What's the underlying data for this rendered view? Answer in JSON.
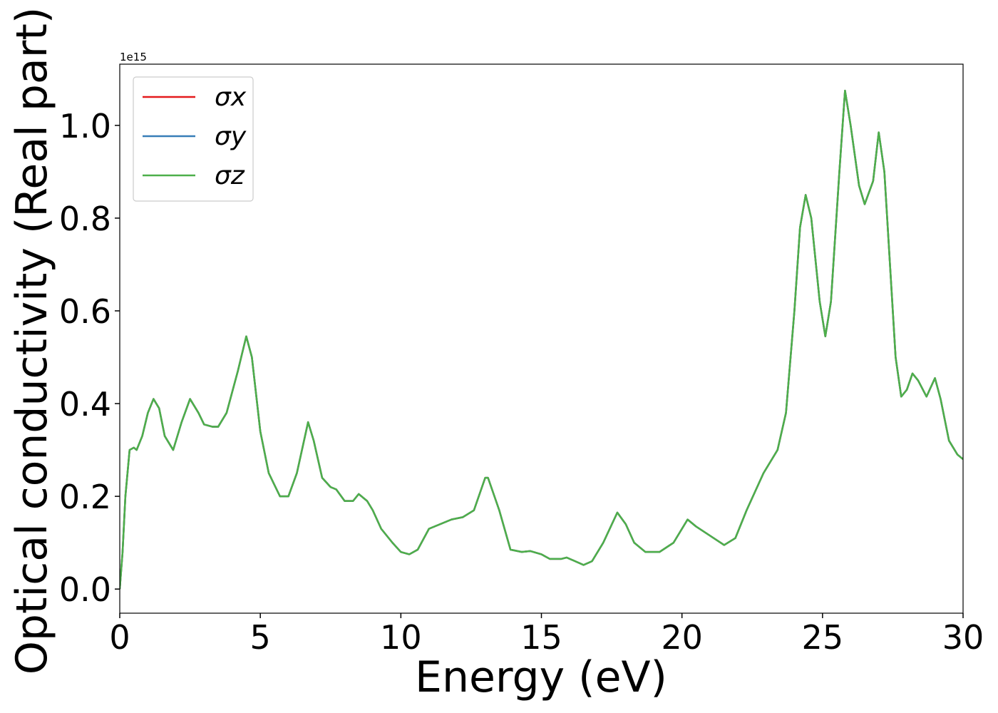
{
  "chart_data": {
    "type": "line",
    "xlabel": "Energy (eV)",
    "ylabel": "Optical conductivity (Real part)",
    "y_offset_label": "1e15",
    "xlim": [
      0,
      30
    ],
    "ylim": [
      -0.052,
      1.132
    ],
    "xticks": [
      0,
      5,
      10,
      15,
      20,
      25,
      30
    ],
    "yticks": [
      {
        "value": 0,
        "label": "0.0"
      },
      0.2,
      0.4,
      0.6,
      0.8,
      {
        "value": 1,
        "label": "1.0"
      }
    ],
    "legend": "upper left",
    "x": [
      0,
      0.1,
      0.2,
      0.35,
      0.5,
      0.6,
      0.8,
      1.0,
      1.2,
      1.4,
      1.6,
      1.9,
      2.2,
      2.5,
      2.8,
      3.0,
      3.3,
      3.5,
      3.8,
      4.2,
      4.5,
      4.7,
      5.0,
      5.3,
      5.7,
      6.0,
      6.3,
      6.7,
      6.9,
      7.2,
      7.5,
      7.7,
      8.0,
      8.3,
      8.5,
      8.8,
      9.0,
      9.3,
      9.7,
      10.0,
      10.3,
      10.6,
      11.0,
      11.4,
      11.8,
      12.2,
      12.6,
      13.0,
      13.1,
      13.5,
      13.9,
      14.3,
      14.6,
      15.0,
      15.3,
      15.7,
      15.9,
      16.2,
      16.5,
      16.8,
      17.2,
      17.7,
      18.0,
      18.3,
      18.7,
      19.2,
      19.7,
      20.2,
      20.5,
      21.0,
      21.5,
      21.9,
      22.3,
      22.9,
      23.4,
      23.7,
      24.0,
      24.2,
      24.4,
      24.6,
      24.9,
      25.1,
      25.3,
      25.6,
      25.8,
      26.0,
      26.3,
      26.5,
      26.8,
      27.0,
      27.2,
      27.4,
      27.6,
      27.8,
      28.0,
      28.2,
      28.4,
      28.7,
      29.0,
      29.2,
      29.5,
      29.8,
      30.0
    ],
    "series": [
      {
        "name": "σx",
        "color": "#e41a1c",
        "values": [
          0,
          0.08,
          0.2,
          0.3,
          0.305,
          0.3,
          0.33,
          0.38,
          0.41,
          0.39,
          0.33,
          0.3,
          0.36,
          0.41,
          0.38,
          0.355,
          0.35,
          0.35,
          0.38,
          0.47,
          0.545,
          0.5,
          0.34,
          0.25,
          0.2,
          0.2,
          0.25,
          0.36,
          0.32,
          0.24,
          0.22,
          0.215,
          0.19,
          0.19,
          0.205,
          0.19,
          0.17,
          0.13,
          0.1,
          0.08,
          0.075,
          0.085,
          0.13,
          0.14,
          0.15,
          0.155,
          0.17,
          0.24,
          0.24,
          0.17,
          0.085,
          0.08,
          0.082,
          0.075,
          0.065,
          0.065,
          0.068,
          0.06,
          0.052,
          0.06,
          0.1,
          0.165,
          0.14,
          0.1,
          0.08,
          0.08,
          0.1,
          0.15,
          0.135,
          0.115,
          0.095,
          0.11,
          0.17,
          0.25,
          0.3,
          0.38,
          0.6,
          0.78,
          0.85,
          0.8,
          0.62,
          0.545,
          0.62,
          0.9,
          1.075,
          1.0,
          0.87,
          0.83,
          0.88,
          0.985,
          0.9,
          0.7,
          0.5,
          0.415,
          0.43,
          0.465,
          0.45,
          0.415,
          0.455,
          0.41,
          0.32,
          0.29,
          0.28
        ]
      },
      {
        "name": "σy",
        "color": "#377eb8",
        "values": [
          0,
          0.08,
          0.2,
          0.3,
          0.305,
          0.3,
          0.33,
          0.38,
          0.41,
          0.39,
          0.33,
          0.3,
          0.36,
          0.41,
          0.38,
          0.355,
          0.35,
          0.35,
          0.38,
          0.47,
          0.545,
          0.5,
          0.34,
          0.25,
          0.2,
          0.2,
          0.25,
          0.36,
          0.32,
          0.24,
          0.22,
          0.215,
          0.19,
          0.19,
          0.205,
          0.19,
          0.17,
          0.13,
          0.1,
          0.08,
          0.075,
          0.085,
          0.13,
          0.14,
          0.15,
          0.155,
          0.17,
          0.24,
          0.24,
          0.17,
          0.085,
          0.08,
          0.082,
          0.075,
          0.065,
          0.065,
          0.068,
          0.06,
          0.052,
          0.06,
          0.1,
          0.165,
          0.14,
          0.1,
          0.08,
          0.08,
          0.1,
          0.15,
          0.135,
          0.115,
          0.095,
          0.11,
          0.17,
          0.25,
          0.3,
          0.38,
          0.6,
          0.78,
          0.85,
          0.8,
          0.62,
          0.545,
          0.62,
          0.9,
          1.075,
          1.0,
          0.87,
          0.83,
          0.88,
          0.985,
          0.9,
          0.7,
          0.5,
          0.415,
          0.43,
          0.465,
          0.45,
          0.415,
          0.455,
          0.41,
          0.32,
          0.29,
          0.28
        ]
      },
      {
        "name": "σz",
        "color": "#4daf4a",
        "values": [
          0,
          0.08,
          0.2,
          0.3,
          0.305,
          0.3,
          0.33,
          0.38,
          0.41,
          0.39,
          0.33,
          0.3,
          0.36,
          0.41,
          0.38,
          0.355,
          0.35,
          0.35,
          0.38,
          0.47,
          0.545,
          0.5,
          0.34,
          0.25,
          0.2,
          0.2,
          0.25,
          0.36,
          0.32,
          0.24,
          0.22,
          0.215,
          0.19,
          0.19,
          0.205,
          0.19,
          0.17,
          0.13,
          0.1,
          0.08,
          0.075,
          0.085,
          0.13,
          0.14,
          0.15,
          0.155,
          0.17,
          0.24,
          0.24,
          0.17,
          0.085,
          0.08,
          0.082,
          0.075,
          0.065,
          0.065,
          0.068,
          0.06,
          0.052,
          0.06,
          0.1,
          0.165,
          0.14,
          0.1,
          0.08,
          0.08,
          0.1,
          0.15,
          0.135,
          0.115,
          0.095,
          0.11,
          0.17,
          0.25,
          0.3,
          0.38,
          0.6,
          0.78,
          0.85,
          0.8,
          0.62,
          0.545,
          0.62,
          0.9,
          1.075,
          1.0,
          0.87,
          0.83,
          0.88,
          0.985,
          0.9,
          0.7,
          0.5,
          0.415,
          0.43,
          0.465,
          0.45,
          0.415,
          0.455,
          0.41,
          0.32,
          0.29,
          0.28
        ]
      }
    ]
  }
}
